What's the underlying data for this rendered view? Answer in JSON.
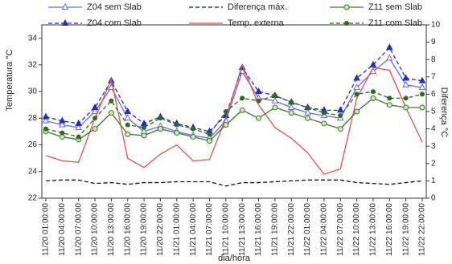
{
  "chart_data": {
    "type": "line",
    "x_label": "dia/hora",
    "y_label": "Temperatura °C",
    "y2_label": "Diferença °C",
    "categories": [
      "11/20 01:00:00",
      "11/20 04:00:00",
      "11/20 07:00:00",
      "11/20 10:00:00",
      "11/20 13:00:00",
      "11/20 16:00:00",
      "11/20 19:00:00",
      "11/20 22:00:00",
      "11/21 01:00:00",
      "11/21 04:00:00",
      "11/21 07:00:00",
      "11/21 10:00:00",
      "11/21 13:00:00",
      "11/21 16:00:00",
      "11/21 19:00:00",
      "11/21 22:00:00",
      "11/22 01:00:00",
      "11/22 04:00:00",
      "11/22 07:00:00",
      "11/22 10:00:00",
      "11/22 13:00:00",
      "11/22 16:00:00",
      "11/22 19:00:00",
      "11/22 22:00:00"
    ],
    "ylim": [
      22,
      35
    ],
    "yticks": [
      22,
      24,
      26,
      28,
      30,
      32,
      34
    ],
    "y2lim": [
      0,
      10
    ],
    "y2ticks": [
      0,
      1,
      2,
      3,
      4,
      5,
      6,
      7,
      8,
      9,
      10
    ],
    "series": [
      {
        "name": "Z04 sem Slab",
        "color": "#6a6ad8",
        "dashed": false,
        "marker": "open-triangle",
        "values": [
          27.8,
          27.5,
          27.3,
          28.5,
          30.3,
          28.0,
          27.0,
          27.4,
          27.0,
          26.7,
          26.5,
          27.8,
          31.5,
          29.5,
          29.3,
          28.8,
          28.4,
          28.2,
          28.0,
          30.3,
          31.5,
          32.5,
          30.5,
          30.3
        ]
      },
      {
        "name": "Z04 com Slab",
        "color": "#1f2fc0",
        "dashed": true,
        "marker": "triangle",
        "values": [
          28.1,
          27.8,
          27.6,
          28.8,
          30.8,
          28.5,
          27.6,
          28.1,
          27.6,
          27.3,
          27.0,
          28.2,
          31.8,
          30.0,
          29.7,
          29.2,
          28.8,
          28.6,
          28.6,
          31.0,
          32.0,
          33.3,
          31.0,
          30.8
        ]
      },
      {
        "name": "Diferença máx.",
        "color": "#111111",
        "dashed": true,
        "marker": "none",
        "axis": "y2",
        "values": [
          1.0,
          1.05,
          1.05,
          0.85,
          0.9,
          0.8,
          0.9,
          0.9,
          0.95,
          0.95,
          0.95,
          0.7,
          0.9,
          0.9,
          0.95,
          1.0,
          1.05,
          1.05,
          1.05,
          0.9,
          0.85,
          0.8,
          0.9,
          1.0
        ]
      },
      {
        "name": "Temp. externa",
        "color": "#e05050",
        "dashed": false,
        "marker": "none",
        "values": [
          25.2,
          24.8,
          24.7,
          28.0,
          30.9,
          25.0,
          24.3,
          25.3,
          26.0,
          24.8,
          24.9,
          28.0,
          32.0,
          29.0,
          27.3,
          26.5,
          25.4,
          23.8,
          24.2,
          29.5,
          31.8,
          31.6,
          28.8,
          26.2
        ]
      },
      {
        "name": "Z11 sem Slab",
        "color": "#3a7a2a",
        "dashed": false,
        "marker": "open-circle",
        "values": [
          27.0,
          26.6,
          26.4,
          27.2,
          28.4,
          26.8,
          26.7,
          27.2,
          26.9,
          26.6,
          26.3,
          27.5,
          28.6,
          28.0,
          28.8,
          28.4,
          28.0,
          27.6,
          27.2,
          28.5,
          29.5,
          29.0,
          28.8,
          28.8
        ]
      },
      {
        "name": "Z11 com Slab",
        "color": "#2d6b1f",
        "dashed": true,
        "marker": "circle",
        "values": [
          27.2,
          26.9,
          26.6,
          28.0,
          29.3,
          27.5,
          27.3,
          28.0,
          27.5,
          27.2,
          26.8,
          28.5,
          29.5,
          29.3,
          29.7,
          29.2,
          28.8,
          28.4,
          28.2,
          29.8,
          30.0,
          29.5,
          29.5,
          29.8
        ]
      }
    ]
  }
}
